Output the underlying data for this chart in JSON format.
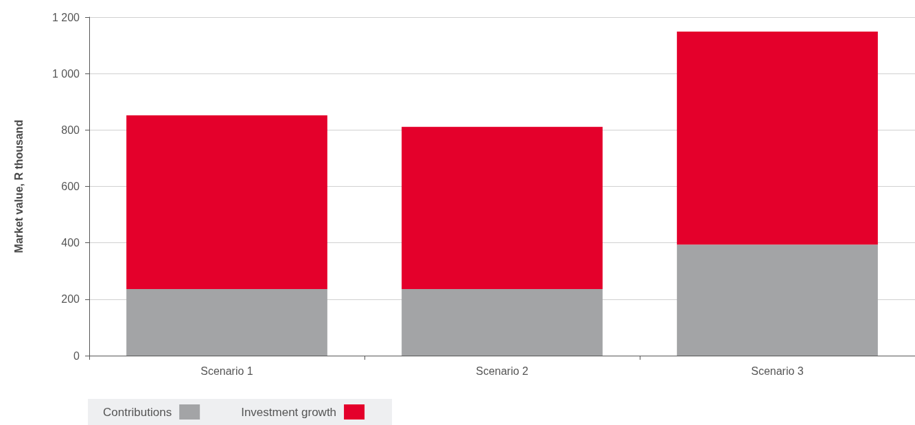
{
  "chart_data": {
    "type": "bar",
    "stacked": true,
    "ylabel": "Market value, R thousand",
    "categories": [
      "Scenario 1",
      "Scenario 2",
      "Scenario 3"
    ],
    "series": [
      {
        "name": "Contributions",
        "color": "#a3a4a6",
        "values": [
          236,
          236,
          394
        ]
      },
      {
        "name": "Investment growth",
        "color": "#e4002b",
        "values": [
          616,
          575,
          755
        ]
      }
    ],
    "ylim": [
      0,
      1200
    ],
    "yticks": [
      0,
      200,
      400,
      600,
      800,
      {
        "value": 1000,
        "label": "1 000"
      },
      {
        "value": 1200,
        "label": "1 200"
      }
    ],
    "grid": "y",
    "legend": "bottom left"
  }
}
